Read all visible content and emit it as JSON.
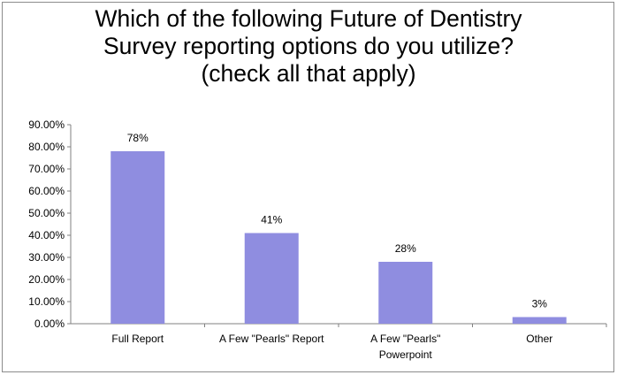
{
  "chart_data": {
    "type": "bar",
    "title_lines": [
      "Which of the following Future of Dentistry",
      "Survey reporting options do you utilize?",
      "(check all that apply)"
    ],
    "categories": [
      [
        "Full Report"
      ],
      [
        "A Few \"Pearls\" Report"
      ],
      [
        "A Few \"Pearls\"",
        "Powerpoint"
      ],
      [
        "Other"
      ]
    ],
    "values": [
      0.78,
      0.41,
      0.28,
      0.03
    ],
    "data_labels": [
      "78%",
      "41%",
      "28%",
      "3%"
    ],
    "y_ticks": [
      "0.00%",
      "10.00%",
      "20.00%",
      "30.00%",
      "40.00%",
      "50.00%",
      "60.00%",
      "70.00%",
      "80.00%",
      "90.00%"
    ],
    "ylim": [
      0,
      0.9
    ],
    "grid": false,
    "legend": false,
    "bar_color": "#8f8de0"
  }
}
